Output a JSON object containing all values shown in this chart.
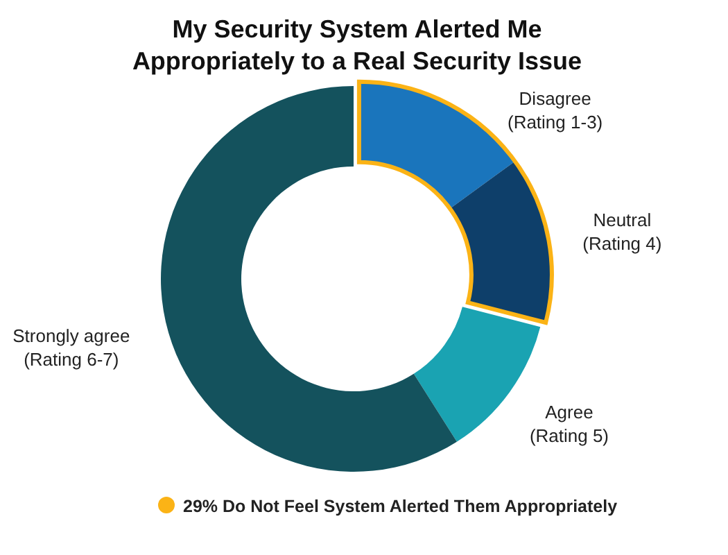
{
  "chart_data": {
    "type": "donut",
    "title": "My Security System Alerted Me\nAppropriately to a Real Security Issue",
    "categories": [
      "Disagree\n(Rating 1-3)",
      "Neutral\n(Rating 4)",
      "Agree\n(Rating 5)",
      "Strongly agree\n(Rating 6-7)"
    ],
    "values": [
      15,
      14,
      12,
      59
    ],
    "colors": [
      "#1a75bc",
      "#0e3f6a",
      "#1aa3b2",
      "#14525d"
    ],
    "annotations": [
      "29% Do Not Feel System Alerted Them Appropriately"
    ]
  }
}
